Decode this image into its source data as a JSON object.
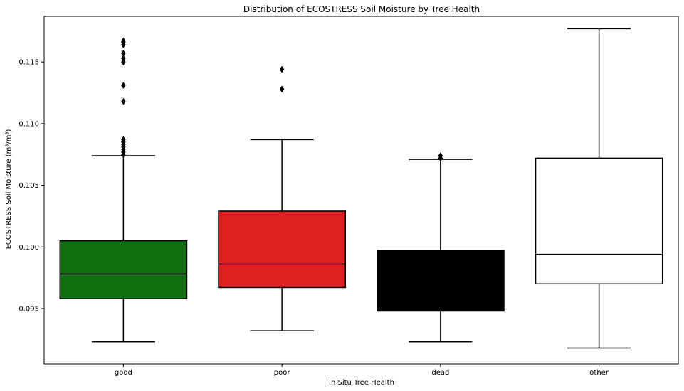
{
  "chart_data": {
    "type": "box",
    "title": "Distribution of ECOSTRESS Soil Moisture by Tree Health",
    "xlabel": "In Situ Tree Health",
    "ylabel": "ECOSTRESS Soil Moisture (m³/m³)",
    "ylim": [
      0.0905,
      0.1187
    ],
    "yticks": [
      0.095,
      0.1,
      0.105,
      0.11,
      0.115
    ],
    "ytick_labels": [
      "0.095",
      "0.100",
      "0.105",
      "0.110",
      "0.115"
    ],
    "grid": false,
    "categories": [
      "good",
      "poor",
      "dead",
      "other"
    ],
    "boxes": [
      {
        "category": "good",
        "color": "#107010",
        "whisker_low": 0.0923,
        "q1": 0.0958,
        "median": 0.0978,
        "q3": 0.1005,
        "whisker_high": 0.1074,
        "outliers": [
          0.1075,
          0.1077,
          0.1079,
          0.1081,
          0.1083,
          0.1085,
          0.1087,
          0.1118,
          0.1131,
          0.115,
          0.1153,
          0.1157,
          0.1164,
          0.1166,
          0.1167
        ]
      },
      {
        "category": "poor",
        "color": "#e02020",
        "whisker_low": 0.0932,
        "q1": 0.0967,
        "median": 0.0986,
        "q3": 0.1029,
        "whisker_high": 0.1087,
        "outliers": [
          0.1128,
          0.1144
        ]
      },
      {
        "category": "dead",
        "color": "#000000",
        "whisker_low": 0.0923,
        "q1": 0.0948,
        "median": 0.0948,
        "q3": 0.0997,
        "whisker_high": 0.1071,
        "outliers": [
          0.1072,
          0.1074
        ]
      },
      {
        "category": "other",
        "color": "#ffffff",
        "whisker_low": 0.0918,
        "q1": 0.097,
        "median": 0.0994,
        "q3": 0.1072,
        "whisker_high": 0.1177,
        "outliers": []
      }
    ]
  }
}
